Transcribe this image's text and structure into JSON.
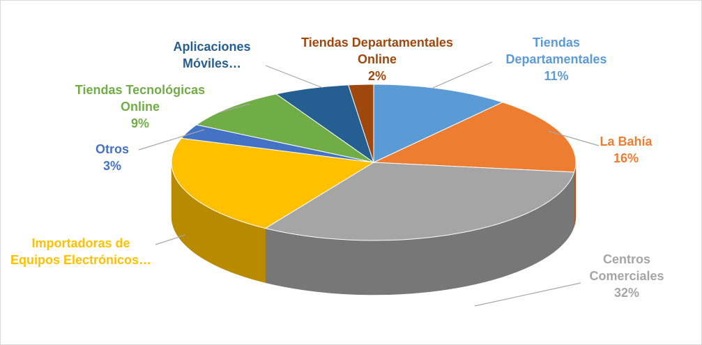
{
  "chart_data": {
    "type": "pie",
    "three_d": true,
    "categories": [
      "Tiendas Departamentales",
      "La Bahía",
      "Centros Comerciales",
      "Importadoras de Equipos Electrónicos…",
      "Otros",
      "Tiendas Tecnológicas Online",
      "Aplicaciones Móviles…",
      "Tiendas Departamentales Online"
    ],
    "values": [
      11,
      16,
      32,
      21,
      3,
      9,
      6,
      2
    ],
    "value_labels": [
      "11%",
      "16%",
      "32%",
      null,
      "3%",
      "9%",
      null,
      "2%"
    ],
    "colors": [
      "#5b9bd5",
      "#ed7d31",
      "#a5a5a5",
      "#ffc000",
      "#4472c4",
      "#70ad47",
      "#255e91",
      "#9e480e"
    ]
  }
}
